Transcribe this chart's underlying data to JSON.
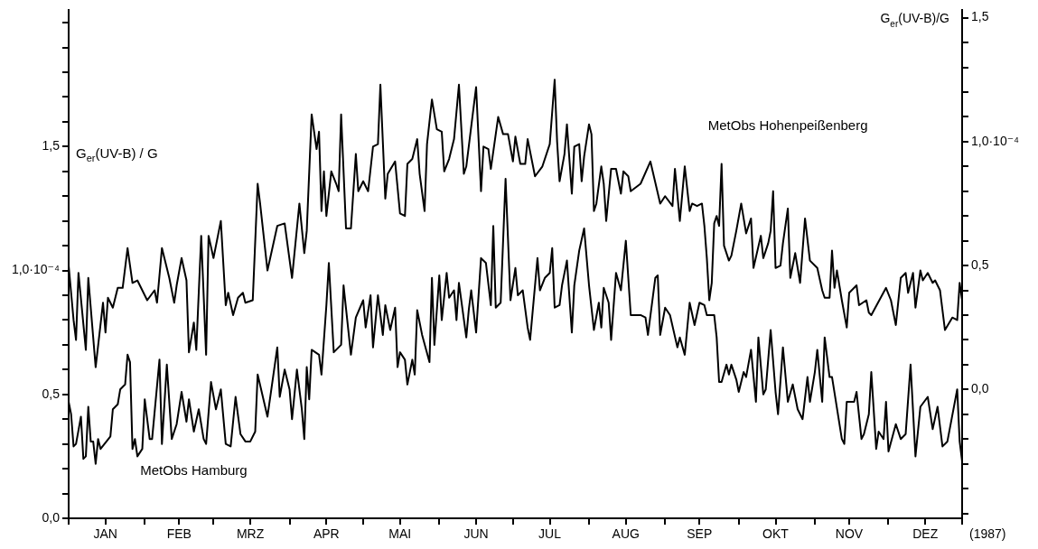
{
  "chart_data": {
    "type": "line",
    "xlabel": "(1987)",
    "ylabel": "G$_{er}$(UV-B) / G",
    "y2label": "G$_{er}$(UV-B)/G",
    "xlim": [
      "1987-01-01",
      "1987-12-31"
    ],
    "xticks": [
      {
        "value": "1987-01-01",
        "label": null
      },
      {
        "value": "1987-01-16",
        "label": "JAN"
      },
      {
        "value": "1987-02-01",
        "label": null
      },
      {
        "value": "1987-02-15",
        "label": "FEB"
      },
      {
        "value": "1987-03-01",
        "label": null
      },
      {
        "value": "1987-03-16",
        "label": "MRZ"
      },
      {
        "value": "1987-04-01",
        "label": null
      },
      {
        "value": "1987-04-16",
        "label": "APR"
      },
      {
        "value": "1987-05-01",
        "label": null
      },
      {
        "value": "1987-05-16",
        "label": "MAI"
      },
      {
        "value": "1987-06-01",
        "label": null
      },
      {
        "value": "1987-06-16",
        "label": "JUN"
      },
      {
        "value": "1987-07-01",
        "label": null
      },
      {
        "value": "1987-07-16",
        "label": "JUL"
      },
      {
        "value": "1987-08-01",
        "label": null
      },
      {
        "value": "1987-08-16",
        "label": "AUG"
      },
      {
        "value": "1987-09-01",
        "label": null
      },
      {
        "value": "1987-09-15",
        "label": "SEP"
      },
      {
        "value": "1987-10-01",
        "label": null
      },
      {
        "value": "1987-10-16",
        "label": "OKT"
      },
      {
        "value": "1987-11-01",
        "label": null
      },
      {
        "value": "1987-11-15",
        "label": "NOV"
      },
      {
        "value": "1987-12-01",
        "label": null
      },
      {
        "value": "1987-12-16",
        "label": "DEZ"
      },
      {
        "value": "1987-12-31",
        "label": null
      }
    ],
    "ylim": [
      0,
      2.05
    ],
    "yticks": [
      {
        "value": 0,
        "label": "0,0"
      },
      {
        "value": 0.1,
        "label": null
      },
      {
        "value": 0.2,
        "label": null
      },
      {
        "value": 0.3,
        "label": null
      },
      {
        "value": 0.4,
        "label": null
      },
      {
        "value": 0.5,
        "label": "0,5"
      },
      {
        "value": 0.6,
        "label": null
      },
      {
        "value": 0.7,
        "label": null
      },
      {
        "value": 0.8,
        "label": null
      },
      {
        "value": 0.9,
        "label": null
      },
      {
        "value": 1.0,
        "label": "1,0·10⁻⁴"
      },
      {
        "value": 1.1,
        "label": null
      },
      {
        "value": 1.2,
        "label": null
      },
      {
        "value": 1.3,
        "label": null
      },
      {
        "value": 1.4,
        "label": null
      },
      {
        "value": 1.5,
        "label": "1,5"
      },
      {
        "value": 1.6,
        "label": null
      },
      {
        "value": 1.7,
        "label": null
      },
      {
        "value": 1.8,
        "label": null
      },
      {
        "value": 1.9,
        "label": null
      },
      {
        "value": 2.0,
        "label": null
      }
    ],
    "y2lim": [
      -0.52,
      1.53
    ],
    "y2ticks": [
      {
        "value": -0.5,
        "label": null
      },
      {
        "value": -0.4,
        "label": null
      },
      {
        "value": -0.3,
        "label": null
      },
      {
        "value": -0.2,
        "label": null
      },
      {
        "value": -0.1,
        "label": null
      },
      {
        "value": 0,
        "label": "0,0"
      },
      {
        "value": 0.1,
        "label": null
      },
      {
        "value": 0.2,
        "label": null
      },
      {
        "value": 0.3,
        "label": null
      },
      {
        "value": 0.4,
        "label": null
      },
      {
        "value": 0.5,
        "label": "0,5"
      },
      {
        "value": 0.6,
        "label": null
      },
      {
        "value": 0.7,
        "label": null
      },
      {
        "value": 0.8,
        "label": null
      },
      {
        "value": 0.9,
        "label": null
      },
      {
        "value": 1.0,
        "label": "1,0·10⁻⁴"
      },
      {
        "value": 1.1,
        "label": null
      },
      {
        "value": 1.2,
        "label": null
      },
      {
        "value": 1.3,
        "label": null
      },
      {
        "value": 1.4,
        "label": null
      },
      {
        "value": 1.5,
        "label": "1,5"
      }
    ],
    "grid": false,
    "legend": false,
    "marker": "none",
    "line_style": "solid",
    "series": [
      {
        "name": "MetObs Hamburg",
        "color": "#000000",
        "axis": "y",
        "x": [
          "1987-01-01",
          "1987-01-02",
          "1987-01-03",
          "1987-01-04",
          "1987-01-06",
          "1987-01-07",
          "1987-01-08",
          "1987-01-09",
          "1987-01-10",
          "1987-01-11",
          "1987-01-12",
          "1987-01-13",
          "1987-01-14",
          "1987-01-18",
          "1987-01-19",
          "1987-01-21",
          "1987-01-22",
          "1987-01-24",
          "1987-01-25",
          "1987-01-26",
          "1987-01-27",
          "1987-01-28",
          "1987-01-29",
          "1987-01-31",
          "1987-02-01",
          "1987-02-03",
          "1987-02-04",
          "1987-02-07",
          "1987-02-08",
          "1987-02-10",
          "1987-02-12",
          "1987-02-14",
          "1987-02-16",
          "1987-02-18",
          "1987-02-19",
          "1987-02-21",
          "1987-02-23",
          "1987-02-25",
          "1987-02-26",
          "1987-02-28",
          "1987-03-02",
          "1987-03-04",
          "1987-03-06",
          "1987-03-08",
          "1987-03-10",
          "1987-03-12",
          "1987-03-14",
          "1987-03-16",
          "1987-03-18",
          "1987-03-19",
          "1987-03-23",
          "1987-03-27",
          "1987-03-28",
          "1987-03-30",
          "1987-04-01",
          "1987-04-02",
          "1987-04-04",
          "1987-04-06",
          "1987-04-07",
          "1987-04-08",
          "1987-04-09",
          "1987-04-10",
          "1987-04-13",
          "1987-04-14",
          "1987-04-16",
          "1987-04-17",
          "1987-04-19",
          "1987-04-22",
          "1987-04-23",
          "1987-04-26",
          "1987-04-28",
          "1987-05-01",
          "1987-05-02",
          "1987-05-04",
          "1987-05-05",
          "1987-05-07",
          "1987-05-08",
          "1987-05-09",
          "1987-05-10",
          "1987-05-12",
          "1987-05-14",
          "1987-05-15",
          "1987-05-16",
          "1987-05-18",
          "1987-05-19",
          "1987-05-21",
          "1987-05-22",
          "1987-05-23",
          "1987-05-25",
          "1987-05-28",
          "1987-05-29",
          "1987-05-30",
          "1987-06-01",
          "1987-06-02",
          "1987-06-04",
          "1987-06-05",
          "1987-06-07",
          "1987-06-08",
          "1987-06-09",
          "1987-06-12",
          "1987-06-13",
          "1987-06-14",
          "1987-06-16",
          "1987-06-18",
          "1987-06-20",
          "1987-06-22",
          "1987-06-23",
          "1987-06-24",
          "1987-06-26",
          "1987-06-28",
          "1987-06-30",
          "1987-07-02",
          "1987-07-03",
          "1987-07-05",
          "1987-07-07",
          "1987-07-08",
          "1987-07-11",
          "1987-07-12",
          "1987-07-14",
          "1987-07-16",
          "1987-07-17",
          "1987-07-18",
          "1987-07-20",
          "1987-07-21",
          "1987-07-23",
          "1987-07-25",
          "1987-07-26",
          "1987-07-28",
          "1987-07-30",
          "1987-08-01",
          "1987-08-03",
          "1987-08-05",
          "1987-08-06",
          "1987-08-07",
          "1987-08-09",
          "1987-08-10",
          "1987-08-12",
          "1987-08-14",
          "1987-08-16",
          "1987-08-18",
          "1987-08-22",
          "1987-08-24",
          "1987-08-25",
          "1987-08-28",
          "1987-08-29",
          "1987-08-30",
          "1987-09-01",
          "1987-09-03",
          "1987-09-06",
          "1987-09-07",
          "1987-09-09",
          "1987-09-11",
          "1987-09-13",
          "1987-09-15",
          "1987-09-17",
          "1987-09-18",
          "1987-09-21",
          "1987-09-22",
          "1987-09-23",
          "1987-09-24",
          "1987-09-26",
          "1987-09-27",
          "1987-09-28",
          "1987-09-30",
          "1987-10-01",
          "1987-10-03",
          "1987-10-04",
          "1987-10-06",
          "1987-10-08",
          "1987-10-09",
          "1987-10-11",
          "1987-10-12",
          "1987-10-14",
          "1987-10-16",
          "1987-10-17",
          "1987-10-19",
          "1987-10-21",
          "1987-10-23",
          "1987-10-25",
          "1987-10-27",
          "1987-10-29",
          "1987-10-30",
          "1987-11-01",
          "1987-11-02",
          "1987-11-04",
          "1987-11-05",
          "1987-11-07",
          "1987-11-08",
          "1987-11-12",
          "1987-11-13",
          "1987-11-14",
          "1987-11-17",
          "1987-11-18",
          "1987-11-20",
          "1987-11-21",
          "1987-11-23",
          "1987-11-24",
          "1987-11-26",
          "1987-11-27",
          "1987-11-29",
          "1987-11-30",
          "1987-12-01",
          "1987-12-04",
          "1987-12-06",
          "1987-12-08",
          "1987-12-10",
          "1987-12-12",
          "1987-12-14",
          "1987-12-17",
          "1987-12-19",
          "1987-12-21",
          "1987-12-23",
          "1987-12-25",
          "1987-12-29",
          "1987-12-30",
          "1987-12-31"
        ],
        "values": [
          0.47,
          0.42,
          0.29,
          0.3,
          0.41,
          0.24,
          0.25,
          0.45,
          0.31,
          0.31,
          0.22,
          0.32,
          0.28,
          0.33,
          0.44,
          0.46,
          0.52,
          0.54,
          0.66,
          0.63,
          0.28,
          0.32,
          0.25,
          0.28,
          0.48,
          0.32,
          0.32,
          0.64,
          0.3,
          0.62,
          0.32,
          0.38,
          0.51,
          0.39,
          0.48,
          0.35,
          0.44,
          0.32,
          0.3,
          0.55,
          0.44,
          0.52,
          0.3,
          0.29,
          0.49,
          0.34,
          0.31,
          0.31,
          0.35,
          0.58,
          0.41,
          0.69,
          0.49,
          0.6,
          0.52,
          0.4,
          0.6,
          0.44,
          0.32,
          0.61,
          0.48,
          0.68,
          0.66,
          0.58,
          0.86,
          1.03,
          0.67,
          0.7,
          0.94,
          0.66,
          0.81,
          0.88,
          0.77,
          0.9,
          0.69,
          0.9,
          0.82,
          0.74,
          0.86,
          0.76,
          0.85,
          0.61,
          0.67,
          0.64,
          0.54,
          0.64,
          0.58,
          0.84,
          0.74,
          0.63,
          0.97,
          0.7,
          0.98,
          0.8,
          0.99,
          0.89,
          0.92,
          0.8,
          0.95,
          0.73,
          0.84,
          0.92,
          0.75,
          1.05,
          1.03,
          0.86,
          1.18,
          0.85,
          0.87,
          1.37,
          0.88,
          1.01,
          0.9,
          0.92,
          0.77,
          0.72,
          1.05,
          0.92,
          0.97,
          0.99,
          1.09,
          0.85,
          0.86,
          0.94,
          1.04,
          0.75,
          0.94,
          1.08,
          1.17,
          0.94,
          0.76,
          0.87,
          0.77,
          0.93,
          0.87,
          0.72,
          0.99,
          0.92,
          1.12,
          0.82,
          0.82,
          0.81,
          0.74,
          0.97,
          0.98,
          0.74,
          0.85,
          0.82,
          0.69,
          0.73,
          0.66,
          0.87,
          0.78,
          0.87,
          0.86,
          0.82,
          0.82,
          0.73,
          0.55,
          0.55,
          0.62,
          0.58,
          0.62,
          0.56,
          0.51,
          0.59,
          0.57,
          0.68,
          0.47,
          0.73,
          0.5,
          0.52,
          0.76,
          0.51,
          0.42,
          0.69,
          0.47,
          0.54,
          0.44,
          0.4,
          0.57,
          0.47,
          0.59,
          0.68,
          0.47,
          0.73,
          0.57,
          0.57,
          0.32,
          0.3,
          0.47,
          0.47,
          0.51,
          0.32,
          0.34,
          0.42,
          0.59,
          0.28,
          0.35,
          0.32,
          0.47,
          0.27,
          0.38,
          0.32,
          0.34,
          0.62,
          0.25,
          0.45,
          0.49,
          0.36,
          0.45,
          0.29,
          0.31,
          0.52,
          0.31,
          0.23
        ]
      },
      {
        "name": "MetObs Hohenpeißenberg",
        "color": "#000000",
        "axis": "y2",
        "x": [
          "1987-01-01",
          "1987-01-03",
          "1987-01-04",
          "1987-01-05",
          "1987-01-08",
          "1987-01-09",
          "1987-01-12",
          "1987-01-15",
          "1987-01-16",
          "1987-01-17",
          "1987-01-19",
          "1987-01-21",
          "1987-01-23",
          "1987-01-25",
          "1987-01-27",
          "1987-01-29",
          "1987-02-02",
          "1987-02-05",
          "1987-02-06",
          "1987-02-08",
          "1987-02-11",
          "1987-02-13",
          "1987-02-14",
          "1987-02-16",
          "1987-02-18",
          "1987-02-19",
          "1987-02-21",
          "1987-02-22",
          "1987-02-24",
          "1987-02-26",
          "1987-02-27",
          "1987-03-01",
          "1987-03-04",
          "1987-03-06",
          "1987-03-07",
          "1987-03-09",
          "1987-03-11",
          "1987-03-13",
          "1987-03-14",
          "1987-03-17",
          "1987-03-19",
          "1987-03-20",
          "1987-03-23",
          "1987-03-27",
          "1987-03-30",
          "1987-04-02",
          "1987-04-05",
          "1987-04-07",
          "1987-04-08",
          "1987-04-10",
          "1987-04-12",
          "1987-04-13",
          "1987-04-14",
          "1987-04-15",
          "1987-04-16",
          "1987-04-18",
          "1987-04-20",
          "1987-04-21",
          "1987-04-22",
          "1987-04-24",
          "1987-04-26",
          "1987-04-28",
          "1987-04-29",
          "1987-05-01",
          "1987-05-03",
          "1987-05-05",
          "1987-05-07",
          "1987-05-08",
          "1987-05-10",
          "1987-05-11",
          "1987-05-14",
          "1987-05-16",
          "1987-05-18",
          "1987-05-19",
          "1987-05-21",
          "1987-05-23",
          "1987-05-24",
          "1987-05-26",
          "1987-05-27",
          "1987-05-29",
          "1987-05-31",
          "1987-06-02",
          "1987-06-03",
          "1987-06-05",
          "1987-06-07",
          "1987-06-09",
          "1987-06-11",
          "1987-06-12",
          "1987-06-16",
          "1987-06-18",
          "1987-06-19",
          "1987-06-21",
          "1987-06-22",
          "1987-06-25",
          "1987-06-27",
          "1987-06-29",
          "1987-07-01",
          "1987-07-02",
          "1987-07-04",
          "1987-07-06",
          "1987-07-07",
          "1987-07-10",
          "1987-07-13",
          "1987-07-16",
          "1987-07-18",
          "1987-07-19",
          "1987-07-20",
          "1987-07-22",
          "1987-07-23",
          "1987-07-25",
          "1987-07-26",
          "1987-07-28",
          "1987-07-29",
          "1987-07-30",
          "1987-08-01",
          "1987-08-02",
          "1987-08-03",
          "1987-08-04",
          "1987-08-06",
          "1987-08-07",
          "1987-08-08",
          "1987-08-10",
          "1987-08-12",
          "1987-08-14",
          "1987-08-15",
          "1987-08-17",
          "1987-08-18",
          "1987-08-22",
          "1987-08-26",
          "1987-08-30",
          "1987-09-01",
          "1987-09-04",
          "1987-09-05",
          "1987-09-07",
          "1987-09-09",
          "1987-09-11",
          "1987-09-12",
          "1987-09-14",
          "1987-09-16",
          "1987-09-17",
          "1987-09-18",
          "1987-09-19",
          "1987-09-20",
          "1987-09-21",
          "1987-09-22",
          "1987-09-23",
          "1987-09-24",
          "1987-09-25",
          "1987-09-27",
          "1987-09-28",
          "1987-09-30",
          "1987-10-02",
          "1987-10-04",
          "1987-10-06",
          "1987-10-07",
          "1987-10-10",
          "1987-10-11",
          "1987-10-13",
          "1987-10-14",
          "1987-10-15",
          "1987-10-16",
          "1987-10-18",
          "1987-10-19",
          "1987-10-21",
          "1987-10-22",
          "1987-10-24",
          "1987-10-26",
          "1987-10-28",
          "1987-10-30",
          "1987-11-02",
          "1987-11-04",
          "1987-11-05",
          "1987-11-07",
          "1987-11-08",
          "1987-11-09",
          "1987-11-10",
          "1987-11-12",
          "1987-11-14",
          "1987-11-15",
          "1987-11-18",
          "1987-11-19",
          "1987-11-22",
          "1987-11-23",
          "1987-11-24",
          "1987-11-30",
          "1987-12-02",
          "1987-12-04",
          "1987-12-06",
          "1987-12-08",
          "1987-12-09",
          "1987-12-11",
          "1987-12-12",
          "1987-12-14",
          "1987-12-15",
          "1987-12-17",
          "1987-12-19",
          "1987-12-20",
          "1987-12-22",
          "1987-12-24",
          "1987-12-27",
          "1987-12-29",
          "1987-12-30",
          "1987-12-31"
        ],
        "values": [
          0.5,
          0.28,
          0.2,
          0.47,
          0.16,
          0.45,
          0.09,
          0.35,
          0.23,
          0.37,
          0.33,
          0.41,
          0.41,
          0.57,
          0.43,
          0.44,
          0.36,
          0.4,
          0.35,
          0.57,
          0.45,
          0.35,
          0.42,
          0.53,
          0.44,
          0.15,
          0.27,
          0.16,
          0.62,
          0.14,
          0.62,
          0.53,
          0.68,
          0.34,
          0.39,
          0.3,
          0.37,
          0.39,
          0.35,
          0.36,
          0.83,
          0.75,
          0.48,
          0.66,
          0.67,
          0.45,
          0.75,
          0.55,
          0.64,
          1.11,
          0.97,
          1.04,
          0.72,
          0.88,
          0.7,
          0.88,
          0.83,
          0.8,
          1.11,
          0.65,
          0.65,
          0.95,
          0.8,
          0.84,
          0.8,
          0.98,
          0.99,
          1.23,
          0.77,
          0.87,
          0.92,
          0.71,
          0.7,
          0.91,
          0.93,
          1.01,
          0.87,
          0.72,
          0.99,
          1.17,
          1.05,
          1.04,
          0.88,
          0.93,
          1.01,
          1.23,
          0.87,
          0.9,
          1.22,
          0.8,
          0.98,
          0.97,
          0.89,
          1.1,
          1.03,
          1.03,
          0.92,
          1.02,
          0.91,
          0.91,
          1.01,
          0.86,
          0.9,
          0.99,
          1.25,
          1.0,
          0.84,
          0.95,
          1.07,
          0.79,
          0.98,
          0.99,
          0.84,
          0.94,
          1.07,
          1.03,
          0.72,
          0.75,
          0.9,
          0.83,
          0.68,
          0.89,
          0.89,
          0.79,
          0.88,
          0.86,
          0.8,
          0.83,
          0.92,
          0.75,
          0.78,
          0.74,
          0.89,
          0.68,
          0.9,
          0.72,
          0.75,
          0.74,
          0.75,
          0.66,
          0.53,
          0.36,
          0.43,
          0.67,
          0.7,
          0.66,
          0.91,
          0.58,
          0.52,
          0.54,
          0.64,
          0.75,
          0.63,
          0.69,
          0.49,
          0.62,
          0.53,
          0.59,
          0.64,
          0.8,
          0.49,
          0.5,
          0.59,
          0.73,
          0.45,
          0.55,
          0.43,
          0.69,
          0.52,
          0.49,
          0.4,
          0.37,
          0.37,
          0.56,
          0.41,
          0.48,
          0.36,
          0.25,
          0.39,
          0.42,
          0.34,
          0.36,
          0.31,
          0.3,
          0.41,
          0.36,
          0.26,
          0.45,
          0.47,
          0.39,
          0.47,
          0.33,
          0.48,
          0.44,
          0.47,
          0.43,
          0.44,
          0.4,
          0.24,
          0.29,
          0.28,
          0.43,
          0.36
        ]
      }
    ]
  }
}
